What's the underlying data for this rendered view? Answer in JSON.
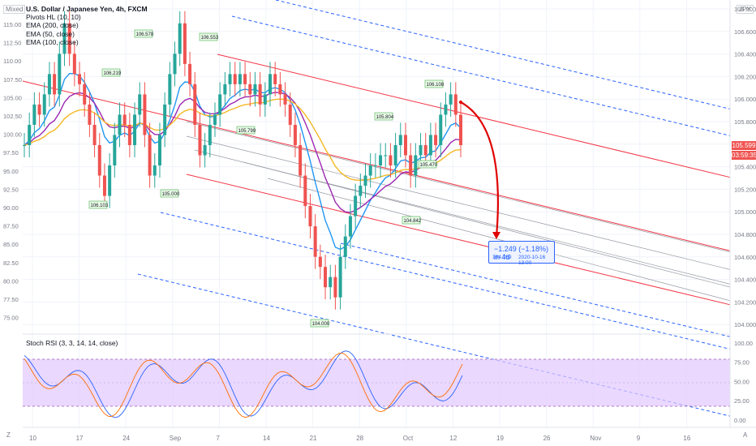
{
  "header": {
    "mode_label": "Mixed",
    "currency": "JPY",
    "indicators": [
      "U.S. Dollar / Japanese Yen, 4h, FXCM",
      "Pivots HL (10, 10)",
      "EMA (200, close)",
      "EMA (50, close)",
      "EMA (100, close)"
    ]
  },
  "price_axis": {
    "ticks": [
      "106.800",
      "106.600",
      "106.400",
      "106.200",
      "106.000",
      "105.800",
      "105.600",
      "105.400",
      "105.200",
      "105.000",
      "104.800",
      "104.600",
      "104.400",
      "104.200",
      "104.000"
    ]
  },
  "left_axis": {
    "ticks": [
      "115.00",
      "112.50",
      "110.00",
      "107.50",
      "105.00",
      "102.50",
      "100.00",
      "97.50",
      "95.00",
      "92.50",
      "90.00",
      "87.50",
      "85.00",
      "82.50",
      "80.00",
      "77.50",
      "75.00"
    ]
  },
  "time_axis": {
    "ticks": [
      "10",
      "17",
      "24",
      "Sep",
      "7",
      "14",
      "21",
      "28",
      "Oct",
      "12",
      "19",
      "26",
      "Nov",
      "9",
      "16"
    ]
  },
  "price_tags": {
    "last_price": "105.599",
    "countdown": "03:59:35"
  },
  "pivots": [
    "106.578",
    "106.553",
    "106.219",
    "106.103",
    "105.000",
    "105.799",
    "105.804",
    "106.108",
    "104.842",
    "105.470",
    "104.000"
  ],
  "measurement": {
    "change": "−1.249 (−1.18%) in 4d",
    "price": "104.769",
    "datetime": "2020-10-16  13:00"
  },
  "rsi": {
    "title": "Stoch RSI (3, 3, 14, 14, close)",
    "ticks": [
      "100.00",
      "75.00",
      "50.00",
      "25.00",
      "0.00"
    ]
  },
  "corners": {
    "left": "Z",
    "right": "A"
  },
  "colors": {
    "up": "#26a69a",
    "down": "#ef5350",
    "ema200": "#f5b826",
    "ema50": "#2196f3",
    "ema100": "#9c27b0",
    "channel_red": "#f23645",
    "channel_blue": "#2962ff",
    "rsi_band": "#e1c8ff"
  },
  "chart_data": {
    "type": "candlestick",
    "symbol": "USDJPY",
    "timeframe": "4h",
    "ylim": [
      103.85,
      106.95
    ],
    "last_price": 105.599,
    "close_series": [
      105.6,
      105.8,
      106.0,
      105.9,
      106.1,
      106.3,
      106.1,
      106.5,
      106.8,
      106.5,
      106.3,
      106.2,
      106.0,
      105.8,
      105.6,
      105.3,
      105.1,
      105.4,
      105.7,
      105.9,
      105.8,
      105.6,
      105.9,
      106.1,
      105.7,
      105.3,
      105.4,
      105.7,
      106.0,
      106.3,
      106.5,
      106.8,
      106.4,
      106.2,
      105.8,
      105.5,
      105.6,
      105.8,
      105.9,
      106.1,
      106.2,
      106.3,
      106.2,
      106.3,
      106.2,
      106.1,
      106.2,
      106.0,
      106.1,
      106.3,
      106.2,
      106.1,
      106.0,
      105.8,
      105.6,
      105.3,
      105.0,
      104.8,
      104.5,
      104.4,
      104.2,
      104.3,
      104.1,
      104.5,
      104.7,
      104.9,
      105.1,
      105.2,
      105.3,
      105.4,
      105.4,
      105.5,
      105.5,
      105.4,
      105.6,
      105.7,
      105.5,
      105.3,
      105.5,
      105.6,
      105.5,
      105.7,
      105.6,
      105.9,
      106.0,
      106.1,
      105.9,
      105.6
    ]
  }
}
